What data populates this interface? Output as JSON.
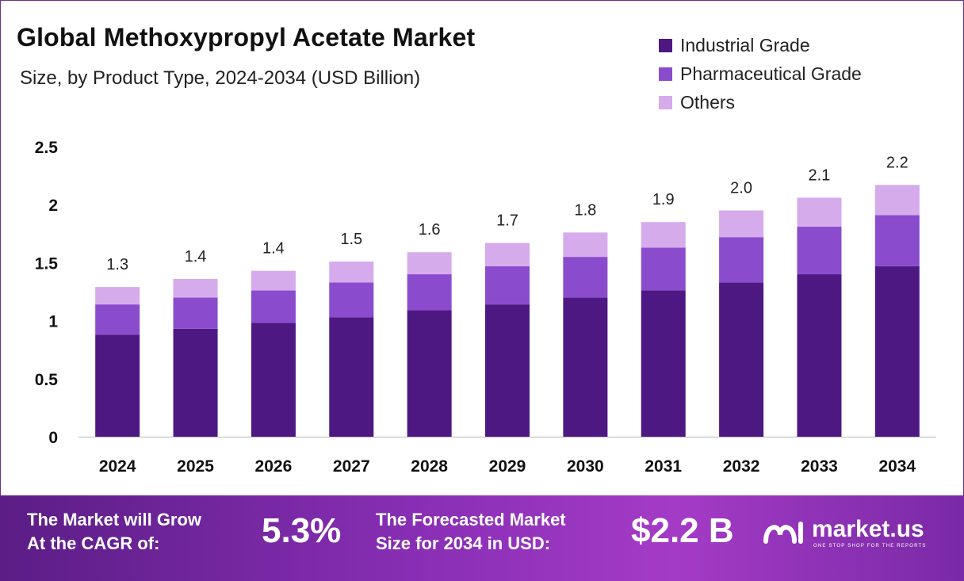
{
  "header": {
    "title": "Global Methoxypropyl Acetate Market",
    "subtitle": "Size, by Product Type, 2024-2034 (USD Billion)"
  },
  "colors": {
    "industrial": "#4e1883",
    "pharmaceutical": "#8a4ccd",
    "others": "#d5abeb",
    "grid": "#cfcfcf"
  },
  "chart_data": {
    "type": "bar",
    "stacked": true,
    "title": "Global Methoxypropyl Acetate Market",
    "subtitle": "Size, by Product Type, 2024-2034 (USD Billion)",
    "xlabel": "",
    "ylabel": "",
    "ylim": [
      0,
      2.5
    ],
    "yticks": [
      {
        "value": 0,
        "label": "0"
      },
      {
        "value": 0.5,
        "label": "0.5"
      },
      {
        "value": 1,
        "label": "1"
      },
      {
        "value": 1.5,
        "label": "1.5"
      },
      {
        "value": 2,
        "label": "2"
      },
      {
        "value": 2.5,
        "label": "2.5"
      }
    ],
    "grid": false,
    "legend_position": "top-right",
    "categories": [
      "2024",
      "2025",
      "2026",
      "2027",
      "2028",
      "2029",
      "2030",
      "2031",
      "2032",
      "2033",
      "2034"
    ],
    "series": [
      {
        "name": "Industrial Grade",
        "values": [
          0.88,
          0.93,
          0.98,
          1.03,
          1.09,
          1.14,
          1.2,
          1.26,
          1.33,
          1.4,
          1.47
        ]
      },
      {
        "name": "Pharmaceutical Grade",
        "values": [
          0.26,
          0.27,
          0.28,
          0.3,
          0.31,
          0.33,
          0.35,
          0.37,
          0.39,
          0.41,
          0.44
        ]
      },
      {
        "name": "Others",
        "values": [
          0.15,
          0.16,
          0.17,
          0.18,
          0.19,
          0.2,
          0.21,
          0.22,
          0.23,
          0.25,
          0.26
        ]
      }
    ],
    "totals": [
      "1.3",
      "1.4",
      "1.4",
      "1.5",
      "1.6",
      "1.7",
      "1.8",
      "1.9",
      "2.0",
      "2.1",
      "2.2"
    ]
  },
  "footer": {
    "cagr_text_line1": "The Market will Grow",
    "cagr_text_line2": "At the CAGR of:",
    "cagr_value": "5.3%",
    "forecast_text_line1": "The Forecasted Market",
    "forecast_text_line2": "Size for 2034 in USD:",
    "forecast_value": "$2.2 B",
    "brand_name": "market.us",
    "brand_tagline": "ONE STOP SHOP FOR THE REPORTS"
  }
}
